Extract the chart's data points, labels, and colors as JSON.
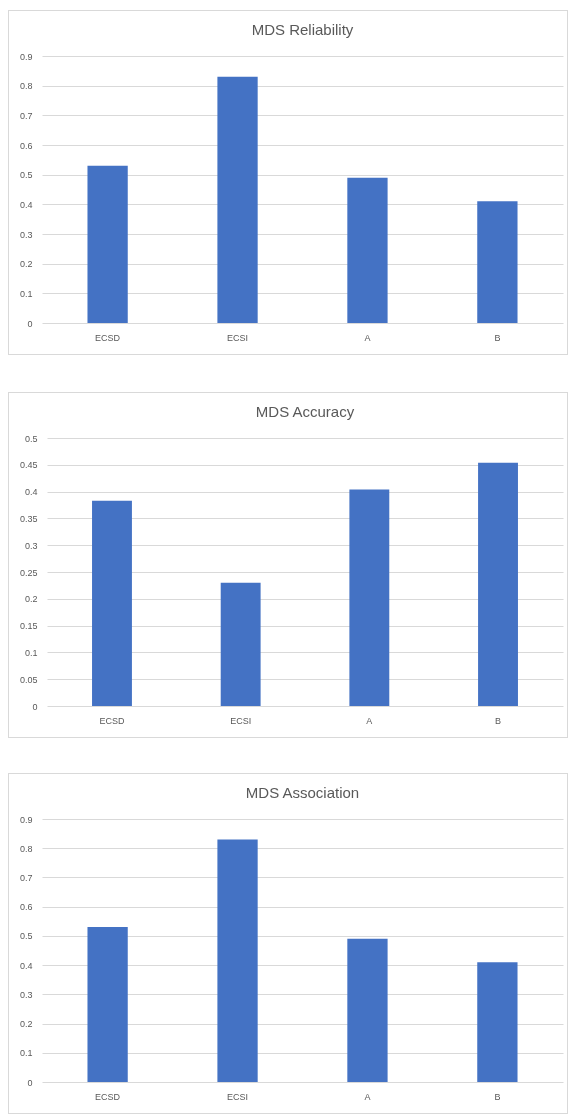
{
  "chart_data": [
    {
      "type": "bar",
      "title": "MDS Reliability",
      "categories": [
        "ECSD",
        "ECSI",
        "A",
        "B"
      ],
      "values": [
        0.53,
        0.83,
        0.49,
        0.41
      ],
      "color": "#4472c4",
      "ylim": [
        0,
        0.9
      ],
      "yticks": [
        0,
        0.1,
        0.2,
        0.3,
        0.4,
        0.5,
        0.6,
        0.7,
        0.8,
        0.9
      ],
      "grid": "y"
    },
    {
      "type": "bar",
      "title": "MDS Accuracy",
      "categories": [
        "ECSD",
        "ECSI",
        "A",
        "B"
      ],
      "values": [
        0.383,
        0.23,
        0.404,
        0.454
      ],
      "color": "#4472c4",
      "ylim": [
        0,
        0.5
      ],
      "yticks": [
        0,
        0.05,
        0.1,
        0.15,
        0.2,
        0.25,
        0.3,
        0.35,
        0.4,
        0.45,
        0.5
      ],
      "grid": "y"
    },
    {
      "type": "bar",
      "title": "MDS Association",
      "categories": [
        "ECSD",
        "ECSI",
        "A",
        "B"
      ],
      "values": [
        0.53,
        0.83,
        0.49,
        0.41
      ],
      "color": "#4472c4",
      "ylim": [
        0,
        0.9
      ],
      "yticks": [
        0,
        0.1,
        0.2,
        0.3,
        0.4,
        0.5,
        0.6,
        0.7,
        0.8,
        0.9
      ],
      "grid": "y"
    }
  ]
}
